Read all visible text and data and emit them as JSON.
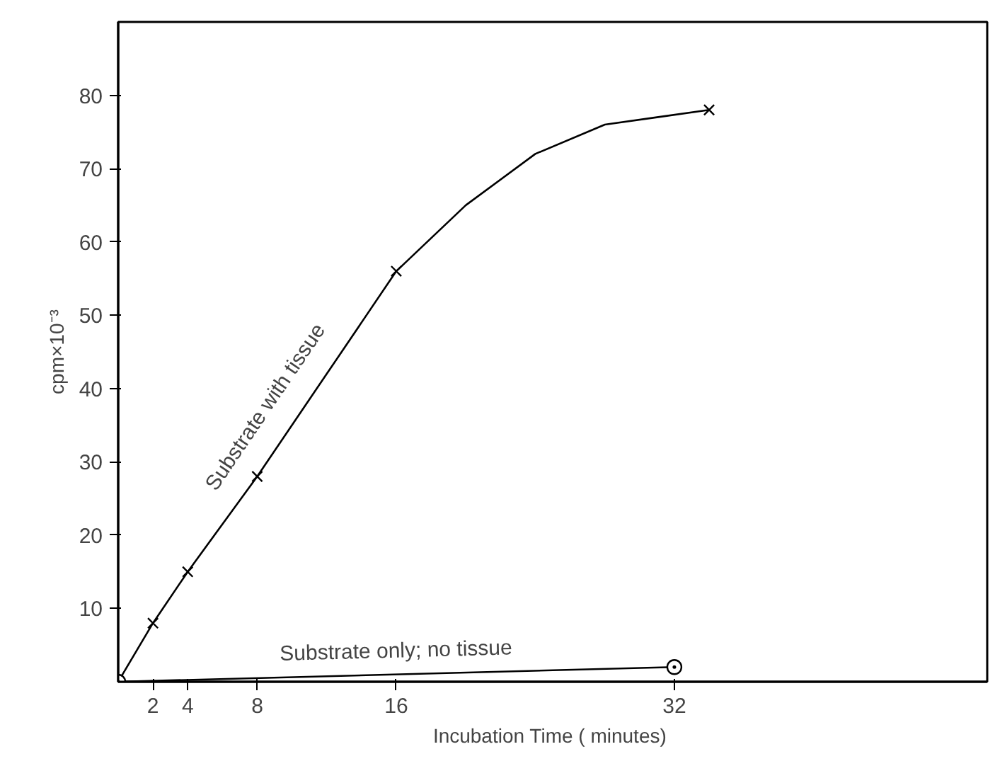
{
  "chart_data": {
    "type": "line",
    "xlabel": "Incubation  Time ( minutes)",
    "ylabel": "cpm×10⁻³",
    "xlim": [
      0,
      50
    ],
    "ylim": [
      0,
      90
    ],
    "xticks": [
      2,
      4,
      8,
      16,
      32
    ],
    "yticks": [
      10,
      20,
      30,
      40,
      50,
      60,
      70,
      80
    ],
    "grid": false,
    "series": [
      {
        "name": "Substrate with tissue",
        "color": "#000000",
        "marker": "none",
        "x": [
          0,
          2,
          4,
          8,
          12,
          16,
          20,
          24,
          28,
          31,
          34
        ],
        "values": [
          0,
          8,
          15,
          28,
          42,
          56,
          65,
          72,
          76,
          77,
          78
        ]
      },
      {
        "color": "#000000",
        "type": "scatter",
        "marker": "cross",
        "x": [
          2,
          4,
          8,
          16,
          34
        ],
        "values": [
          8,
          15,
          28,
          56,
          78
        ]
      },
      {
        "name": "Substrate only; no tissue",
        "color": "#000000",
        "marker": "circle",
        "x": [
          0,
          32
        ],
        "values": [
          0,
          2
        ]
      }
    ]
  }
}
